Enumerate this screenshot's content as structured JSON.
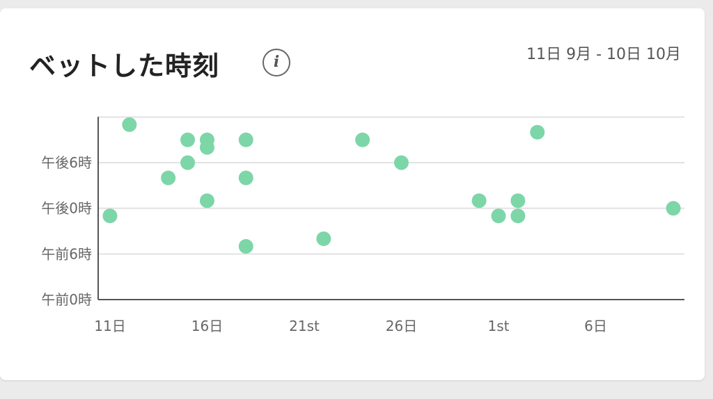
{
  "header": {
    "title": "ベットした時刻",
    "date_range": "11日 9月 - 10日 10月"
  },
  "colors": {
    "point": "#7dd6a8",
    "grid": "#e2e2e2",
    "axis": "#555555"
  },
  "chart_data": {
    "type": "scatter",
    "x_unit": "days since 11日 (day 0 = 11日, 9月)",
    "y_unit": "hour of day",
    "xlim": [
      0,
      30
    ],
    "ylim": [
      0,
      24
    ],
    "x_ticks": [
      {
        "x": 0,
        "label": "11日"
      },
      {
        "x": 5,
        "label": "16日"
      },
      {
        "x": 10,
        "label": "21st"
      },
      {
        "x": 15,
        "label": "26日"
      },
      {
        "x": 20,
        "label": "1st"
      },
      {
        "x": 25,
        "label": "6日"
      }
    ],
    "y_ticks": [
      {
        "y": 0,
        "label": "午前0時"
      },
      {
        "y": 6,
        "label": "午前6時"
      },
      {
        "y": 12,
        "label": "午後0時"
      },
      {
        "y": 18,
        "label": "午後6時"
      }
    ],
    "grid": true,
    "points": [
      {
        "x": 0.5,
        "y": 11.0
      },
      {
        "x": 1.5,
        "y": 23.0
      },
      {
        "x": 3.5,
        "y": 16.0
      },
      {
        "x": 4.5,
        "y": 21.0
      },
      {
        "x": 4.5,
        "y": 18.0
      },
      {
        "x": 5.5,
        "y": 21.0
      },
      {
        "x": 5.5,
        "y": 20.0
      },
      {
        "x": 5.5,
        "y": 13.0
      },
      {
        "x": 7.5,
        "y": 21.0
      },
      {
        "x": 7.5,
        "y": 16.0
      },
      {
        "x": 7.5,
        "y": 7.0
      },
      {
        "x": 11.5,
        "y": 8.0
      },
      {
        "x": 13.5,
        "y": 21.0
      },
      {
        "x": 15.5,
        "y": 18.0
      },
      {
        "x": 19.5,
        "y": 13.0
      },
      {
        "x": 20.5,
        "y": 11.0
      },
      {
        "x": 21.5,
        "y": 13.0
      },
      {
        "x": 21.5,
        "y": 11.0
      },
      {
        "x": 22.5,
        "y": 22.0
      },
      {
        "x": 29.5,
        "y": 12.0
      }
    ]
  }
}
